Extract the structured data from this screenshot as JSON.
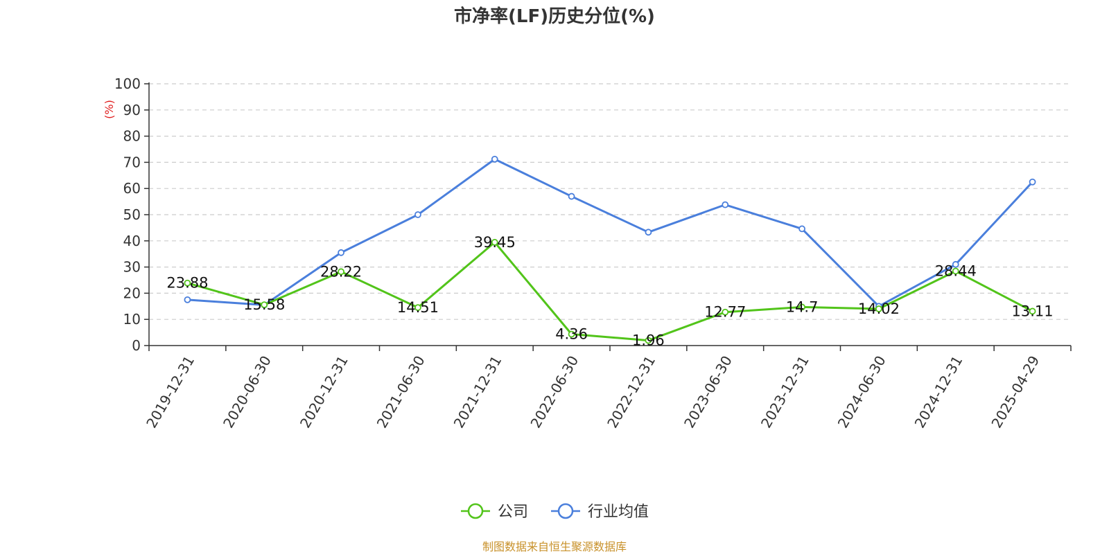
{
  "chart_data": {
    "type": "line",
    "title": "市净率(LF)历史分位(%)",
    "ylabel": "(%)",
    "ylim": [
      0,
      100
    ],
    "yticks": [
      0,
      10,
      20,
      30,
      40,
      50,
      60,
      70,
      80,
      90,
      100
    ],
    "grid": true,
    "legend_position": "bottom",
    "categories": [
      "2019-12-31",
      "2020-06-30",
      "2020-12-31",
      "2021-06-30",
      "2021-12-31",
      "2022-06-30",
      "2022-12-31",
      "2023-06-30",
      "2023-12-31",
      "2024-06-30",
      "2024-12-31",
      "2025-04-29"
    ],
    "series": [
      {
        "name": "公司",
        "color": "#52c41a",
        "values": [
          23.88,
          15.58,
          28.22,
          14.51,
          39.45,
          4.36,
          1.96,
          12.77,
          14.7,
          14.02,
          28.44,
          13.11
        ],
        "labels": [
          "23.88",
          "15.58",
          "28.22",
          "14.51",
          "39.45",
          "4.36",
          "1.96",
          "12.77",
          "14.7",
          "14.02",
          "28.44",
          "13.11"
        ]
      },
      {
        "name": "行业均值",
        "color": "#4a7fdc",
        "values": [
          17.5,
          15.5,
          35.5,
          50.0,
          71.2,
          57.0,
          43.3,
          53.8,
          44.6,
          15.0,
          31.0,
          62.5
        ]
      }
    ],
    "source": "制图数据来自恒生聚源数据库",
    "source_color": "#c8912a",
    "ylabel_color": "#e02020"
  }
}
